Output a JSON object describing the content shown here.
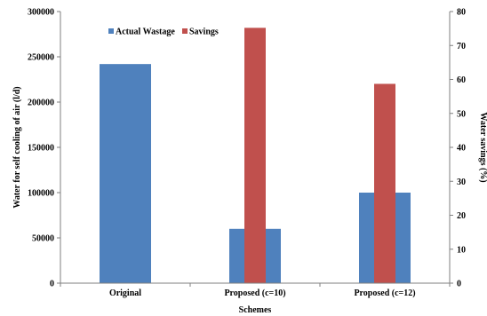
{
  "chart_data": {
    "type": "bar",
    "categories": [
      "Original",
      "Proposed (c=10)",
      "Proposed (c=12)"
    ],
    "series": [
      {
        "name": "Actual Wastage",
        "axis": "left",
        "color": "#4f81bd",
        "values": [
          242000,
          60000,
          100000
        ]
      },
      {
        "name": "Savings",
        "axis": "right",
        "color": "#c0504d",
        "values": [
          null,
          75.2,
          58.7
        ]
      }
    ],
    "xlabel": "Schemes",
    "ylabel": "Water for self cooling of air (l/d)",
    "ylabel_right": "Water savings (%)",
    "ylim": [
      0,
      300000
    ],
    "ylim_right": [
      0,
      80
    ],
    "yticks": [
      0,
      50000,
      100000,
      150000,
      200000,
      250000,
      300000
    ],
    "yticks_right": [
      0,
      10,
      20,
      30,
      40,
      50,
      60,
      70,
      80
    ],
    "legend_position": "top-left",
    "grid": false
  }
}
